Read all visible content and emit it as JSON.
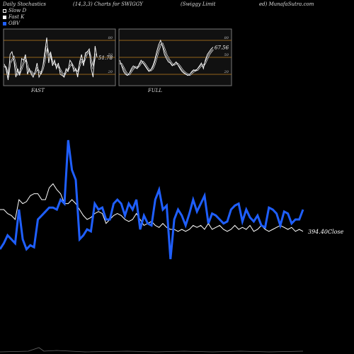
{
  "header": {
    "left": "Daily Stochastics",
    "center": "(14,3,3) Charts for SWIGGY",
    "company": "(Swiggy Limit",
    "site": "ed) MunafaSutra.com"
  },
  "legend": [
    {
      "label": "Slow  D",
      "color": "#000000"
    },
    {
      "label": "Fast K",
      "color": "#ffffff"
    },
    {
      "label": "OBV",
      "color": "#1f5fff"
    }
  ],
  "colors": {
    "background": "#000000",
    "obv": "#1f5fff",
    "price": "#ffffff",
    "band": "#c08020"
  },
  "chart_data": [
    {
      "type": "line",
      "title": "FAST",
      "ylim": [
        0,
        100
      ],
      "ticks": [
        20,
        50,
        80
      ],
      "bands": [
        20,
        50,
        80
      ],
      "last_value_label": "51.78",
      "series": [
        {
          "name": "Fast K",
          "values": [
            38,
            30,
            10,
            55,
            60,
            45,
            15,
            30,
            18,
            48,
            45,
            55,
            20,
            30,
            20,
            15,
            25,
            40,
            15,
            22,
            35,
            60,
            85,
            40,
            60,
            35,
            45,
            30,
            40,
            20,
            18,
            15,
            30,
            25,
            45,
            40,
            25,
            30,
            15,
            42,
            55,
            35,
            58,
            60,
            65,
            30,
            15,
            70,
            50
          ]
        },
        {
          "name": "Slow  D",
          "values": [
            35,
            32,
            15,
            40,
            45,
            50,
            35,
            20,
            22,
            30,
            40,
            48,
            35,
            25,
            25,
            20,
            22,
            30,
            25,
            22,
            30,
            45,
            70,
            55,
            55,
            40,
            40,
            35,
            35,
            28,
            22,
            18,
            25,
            28,
            35,
            38,
            32,
            28,
            22,
            35,
            45,
            40,
            50,
            58,
            60,
            45,
            30,
            55,
            55
          ]
        }
      ]
    },
    {
      "type": "line",
      "title": "FULL",
      "ylim": [
        0,
        100
      ],
      "ticks": [
        20,
        50,
        80
      ],
      "bands": [
        20,
        50,
        80
      ],
      "last_value_label": "67.56",
      "series": [
        {
          "name": "Fast K",
          "values": [
            45,
            35,
            25,
            20,
            18,
            22,
            30,
            35,
            32,
            30,
            38,
            45,
            40,
            35,
            30,
            25,
            28,
            35,
            45,
            60,
            72,
            80,
            70,
            55,
            48,
            42,
            40,
            35,
            38,
            42,
            36,
            30,
            25,
            22,
            20,
            18,
            20,
            25,
            28,
            26,
            30,
            35,
            40,
            30,
            45,
            55,
            60,
            65,
            68
          ]
        },
        {
          "name": "Slow  D",
          "values": [
            40,
            38,
            32,
            25,
            20,
            20,
            25,
            30,
            33,
            32,
            35,
            40,
            42,
            38,
            33,
            28,
            27,
            30,
            38,
            50,
            62,
            72,
            74,
            65,
            55,
            48,
            43,
            38,
            37,
            40,
            38,
            34,
            29,
            25,
            22,
            20,
            19,
            22,
            25,
            27,
            28,
            32,
            36,
            35,
            40,
            48,
            55,
            60,
            64
          ]
        }
      ]
    },
    {
      "type": "line",
      "title": "",
      "last_value_label": "394.40Close",
      "series": [
        {
          "name": "OBV",
          "color": "#1f5fff",
          "values": [
            35,
            38,
            42,
            40,
            38,
            55,
            40,
            35,
            37,
            36,
            50,
            52,
            54,
            56,
            56,
            55,
            60,
            58,
            90,
            75,
            70,
            40,
            42,
            45,
            44,
            58,
            55,
            56,
            50,
            50,
            58,
            60,
            58,
            52,
            58,
            55,
            60,
            45,
            52,
            48,
            47,
            60,
            65,
            55,
            57,
            30,
            50,
            55,
            52,
            47,
            53,
            60,
            54,
            58,
            62,
            48,
            53,
            52,
            50,
            48,
            49,
            55,
            57,
            58,
            49,
            55,
            51,
            49,
            52,
            47,
            46,
            56,
            55,
            53,
            47,
            54,
            53,
            48,
            50,
            50,
            55
          ]
        },
        {
          "name": "Close",
          "color": "#ffffff",
          "values": [
            55,
            55,
            53,
            52,
            50,
            60,
            58,
            59,
            62,
            63,
            63,
            60,
            60,
            66,
            68,
            65,
            63,
            58,
            58,
            60,
            58,
            55,
            52,
            50,
            51,
            53,
            54,
            53,
            48,
            50,
            52,
            53,
            52,
            50,
            49,
            50,
            53,
            50,
            47,
            48,
            49,
            47,
            46,
            48,
            46,
            45,
            45,
            44,
            45,
            44,
            45,
            47,
            46,
            47,
            45,
            48,
            45,
            46,
            47,
            45,
            44,
            45,
            47,
            45,
            46,
            45,
            47,
            44,
            45,
            47,
            45,
            44,
            45,
            46,
            47,
            46,
            45,
            46,
            44,
            45,
            44
          ]
        }
      ]
    }
  ]
}
